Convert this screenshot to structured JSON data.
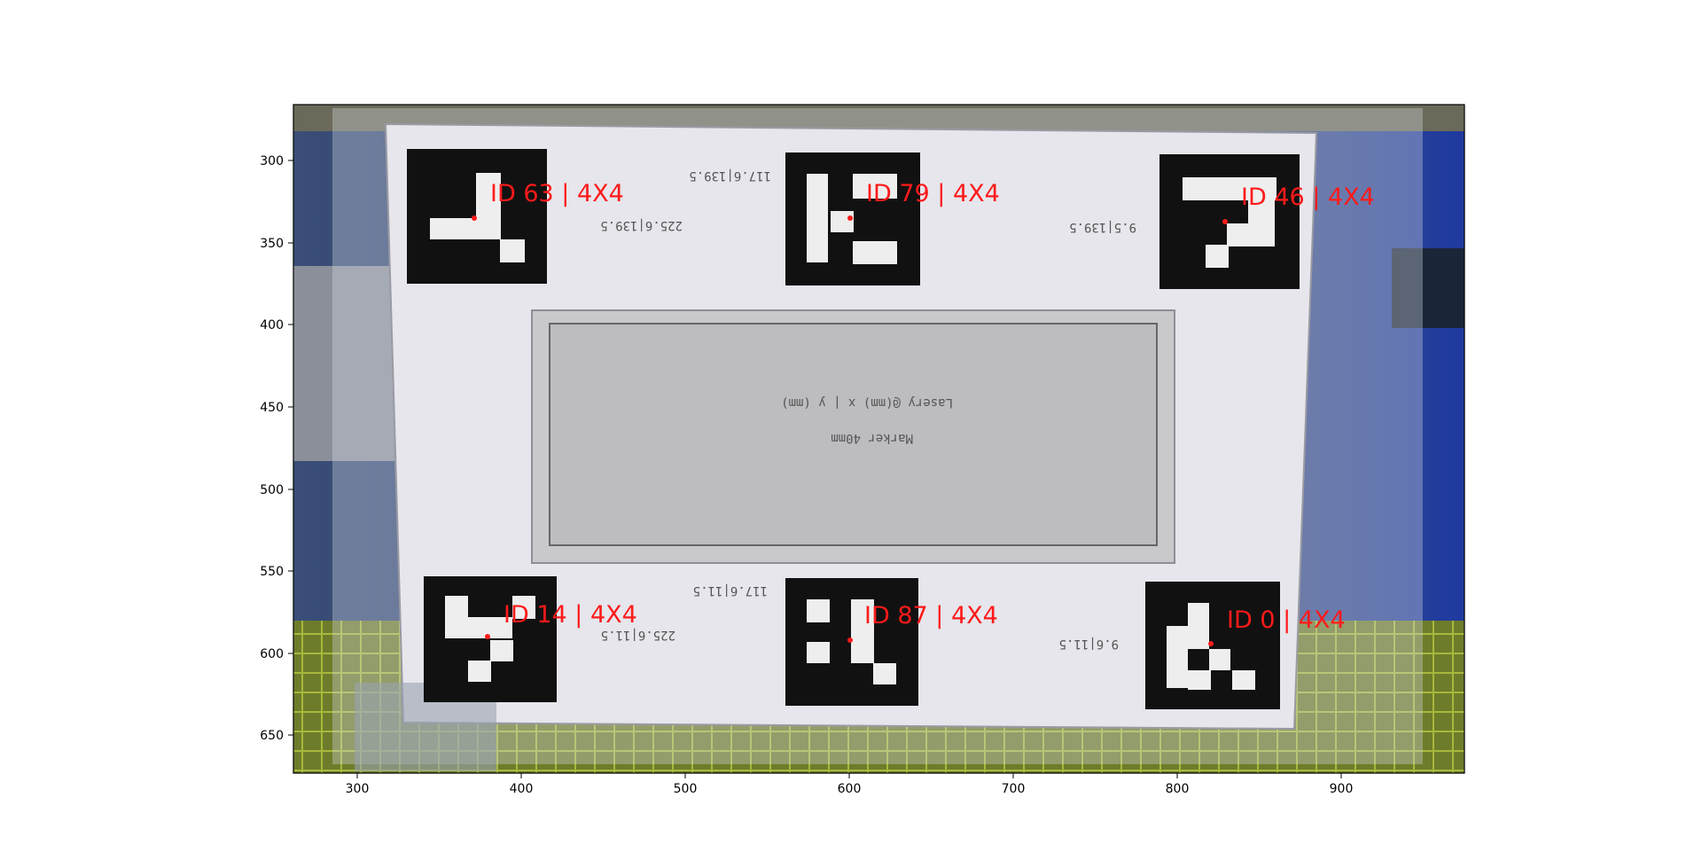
{
  "figure": {
    "xaxis": {
      "ticks": [
        "300",
        "400",
        "500",
        "600",
        "700",
        "800",
        "900"
      ]
    },
    "yaxis": {
      "ticks": [
        "300",
        "350",
        "400",
        "450",
        "500",
        "550",
        "600",
        "650"
      ]
    }
  },
  "markers": [
    {
      "label": "ID 63 | 4X4"
    },
    {
      "label": "ID 79 | 4X4"
    },
    {
      "label": "ID 46 | 4X4"
    },
    {
      "label": "ID 14 | 4X4"
    },
    {
      "label": "ID 87 | 4X4"
    },
    {
      "label": "ID 0 | 4X4"
    }
  ],
  "mirrored_text": {
    "top_left_a": "117.6|139.5",
    "top_left_b": "225.6|139.5",
    "top_right": "9.5|139.5",
    "center_a": "Lasery @(mm) x | y (mm)",
    "center_b": "Marker 40mm",
    "bottom_left_a": "117.6|11.5",
    "bottom_left_b": "225.6|11.5",
    "bottom_right": "9.6|11.5"
  },
  "colors": {
    "label_red": "#ff1a1a",
    "board_white": "#e6e6ec",
    "marker_black": "#111111"
  }
}
